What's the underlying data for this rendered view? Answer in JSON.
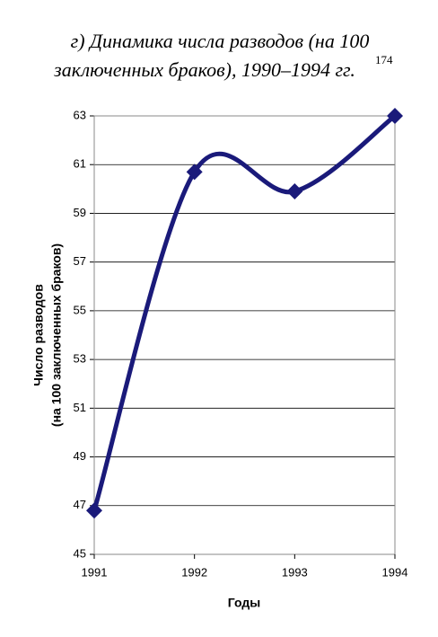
{
  "chart_data": {
    "type": "line",
    "title": [
      "г) Динамика числа разводов (на 100",
      "заключенных браков), 1990–1994 гг."
    ],
    "title_superscript": "174",
    "x_label": "Годы",
    "y_label": [
      "Число разводов",
      "(на 100 заключенных браков)"
    ],
    "x": [
      1991,
      1992,
      1993,
      1994
    ],
    "series": [
      {
        "name": "Число разводов",
        "color": "#1a1a7a",
        "values": [
          46.8,
          60.7,
          59.9,
          63.0
        ]
      }
    ],
    "xlim": [
      1991,
      1994
    ],
    "xticks": [
      1991,
      1992,
      1993,
      1994
    ],
    "ylim": [
      45,
      63
    ],
    "yticks": [
      45,
      47,
      49,
      51,
      53,
      55,
      57,
      59,
      61,
      63
    ],
    "grid": true,
    "smooth": true,
    "marker": "diamond"
  }
}
